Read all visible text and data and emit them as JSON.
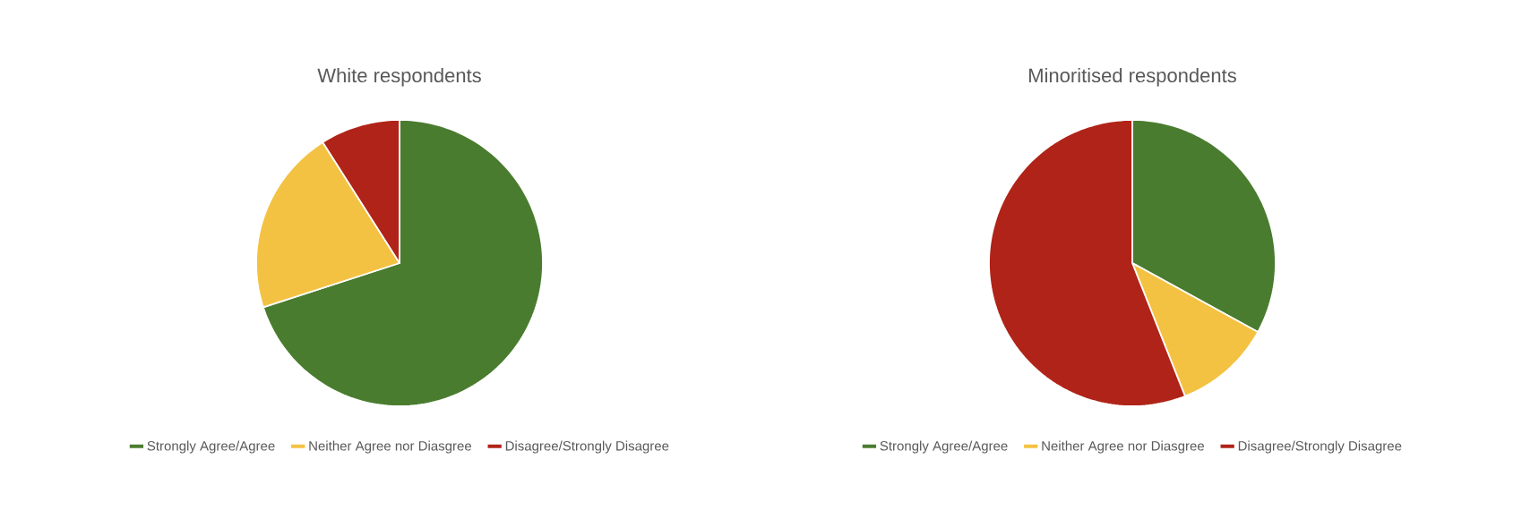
{
  "chart_data": [
    {
      "type": "pie",
      "title": "White respondents",
      "categories": [
        "Strongly Agree/Agree",
        "Neither Agree nor Diasgree",
        "Disagree/Strongly Disagree"
      ],
      "values": [
        70,
        21,
        9
      ],
      "colors": [
        "#4a7c2f",
        "#f4c242",
        "#b02318"
      ],
      "legend": "bottom"
    },
    {
      "type": "pie",
      "title": "Minoritised respondents",
      "categories": [
        "Strongly Agree/Agree",
        "Neither Agree nor Diasgree",
        "Disagree/Strongly Disagree"
      ],
      "values": [
        33,
        11,
        56
      ],
      "colors": [
        "#4a7c2f",
        "#f4c242",
        "#b02318"
      ],
      "legend": "bottom"
    }
  ]
}
